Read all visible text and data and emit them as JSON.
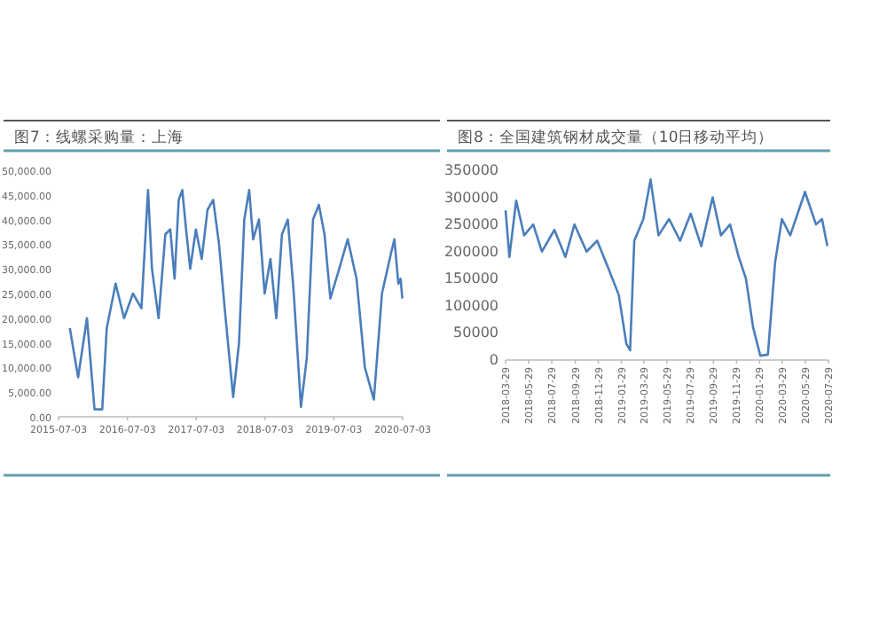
{
  "chart_data": [
    {
      "type": "line",
      "title": "图7：线螺采购量：上海",
      "color": "#4a7ebb",
      "xlim": [
        "2015-07-03",
        "2020-07-03"
      ],
      "xticks": [
        "2015-07-03",
        "2016-07-03",
        "2017-07-03",
        "2018-07-03",
        "2019-07-03",
        "2020-07-03"
      ],
      "ylim": [
        0,
        50000
      ],
      "yticks": [
        {
          "value": 0,
          "label": "0.00"
        },
        {
          "value": 5000,
          "label": "5,000.00"
        },
        {
          "value": 10000,
          "label": "10,000.00"
        },
        {
          "value": 15000,
          "label": "15,000.00"
        },
        {
          "value": 20000,
          "label": "20,000.00"
        },
        {
          "value": 25000,
          "label": "25,000.00"
        },
        {
          "value": 30000,
          "label": "30,000.00"
        },
        {
          "value": 35000,
          "label": "35,000.00"
        },
        {
          "value": 40000,
          "label": "40,000.00"
        },
        {
          "value": 45000,
          "label": "45,000.00"
        },
        {
          "value": 50000,
          "label": "50,000.00"
        }
      ],
      "x": [
        "2015-09-01",
        "2015-10-15",
        "2015-12-01",
        "2016-01-10",
        "2016-02-20",
        "2016-03-15",
        "2016-05-01",
        "2016-06-15",
        "2016-08-01",
        "2016-09-15",
        "2016-10-20",
        "2016-11-10",
        "2016-12-15",
        "2017-01-20",
        "2017-02-15",
        "2017-03-10",
        "2017-04-01",
        "2017-04-20",
        "2017-05-10",
        "2017-06-01",
        "2017-07-01",
        "2017-08-01",
        "2017-09-01",
        "2017-10-01",
        "2017-11-01",
        "2017-12-01",
        "2018-01-15",
        "2018-02-15",
        "2018-03-15",
        "2018-04-10",
        "2018-05-01",
        "2018-06-01",
        "2018-07-01",
        "2018-08-01",
        "2018-09-01",
        "2018-10-01",
        "2018-11-01",
        "2018-12-01",
        "2019-01-10",
        "2019-02-10",
        "2019-03-15",
        "2019-04-15",
        "2019-05-15",
        "2019-06-15",
        "2019-08-01",
        "2019-09-15",
        "2019-11-01",
        "2019-12-15",
        "2020-02-01",
        "2020-03-15",
        "2020-05-01",
        "2020-05-20",
        "2020-06-10",
        "2020-06-22",
        "2020-07-01"
      ],
      "values": [
        18000,
        8000,
        20000,
        1500,
        1500,
        18000,
        27000,
        20000,
        25000,
        22000,
        46000,
        30000,
        20000,
        37000,
        38000,
        28000,
        44000,
        46000,
        38000,
        30000,
        38000,
        32000,
        42000,
        44000,
        35000,
        22000,
        4000,
        15000,
        40000,
        46000,
        36000,
        40000,
        25000,
        32000,
        20000,
        37000,
        40000,
        26000,
        2000,
        12000,
        40000,
        43000,
        37000,
        24000,
        30000,
        36000,
        28000,
        10000,
        3500,
        25000,
        33000,
        36000,
        27000,
        28000,
        24000
      ]
    },
    {
      "type": "line",
      "title": "图8：全国建筑钢材成交量（10日移动平均）",
      "color": "#4a7ebb",
      "xlim": [
        "2018-03-29",
        "2020-07-29"
      ],
      "xticks": [
        "2018-03-29",
        "2018-05-29",
        "2018-07-29",
        "2018-09-29",
        "2018-11-29",
        "2019-01-29",
        "2019-03-29",
        "2019-05-29",
        "2019-07-29",
        "2019-09-29",
        "2019-11-29",
        "2020-01-29",
        "2020-03-29",
        "2020-05-29",
        "2020-07-29"
      ],
      "ylim": [
        0,
        350000
      ],
      "yticks": [
        0,
        50000,
        100000,
        150000,
        200000,
        250000,
        300000,
        350000
      ],
      "x": [
        "2018-03-29",
        "2018-04-08",
        "2018-04-26",
        "2018-05-17",
        "2018-06-10",
        "2018-07-03",
        "2018-08-05",
        "2018-09-03",
        "2018-09-27",
        "2018-10-29",
        "2018-11-26",
        "2018-12-25",
        "2019-01-22",
        "2019-02-11",
        "2019-02-21",
        "2019-03-04",
        "2019-03-28",
        "2019-04-16",
        "2019-05-07",
        "2019-06-04",
        "2019-07-03",
        "2019-07-31",
        "2019-08-28",
        "2019-09-27",
        "2019-10-19",
        "2019-11-12",
        "2019-12-05",
        "2019-12-24",
        "2020-01-12",
        "2020-01-31",
        "2020-02-20",
        "2020-03-10",
        "2020-03-28",
        "2020-04-19",
        "2020-05-28",
        "2020-06-26",
        "2020-07-12",
        "2020-07-26"
      ],
      "values": [
        276000,
        190000,
        294000,
        230000,
        250000,
        200000,
        240000,
        190000,
        250000,
        200000,
        220000,
        170000,
        120000,
        30000,
        18000,
        220000,
        260000,
        333000,
        230000,
        260000,
        220000,
        270000,
        210000,
        300000,
        230000,
        250000,
        190000,
        150000,
        60000,
        8000,
        10000,
        180000,
        260000,
        230000,
        310000,
        250000,
        260000,
        210000
      ]
    }
  ]
}
